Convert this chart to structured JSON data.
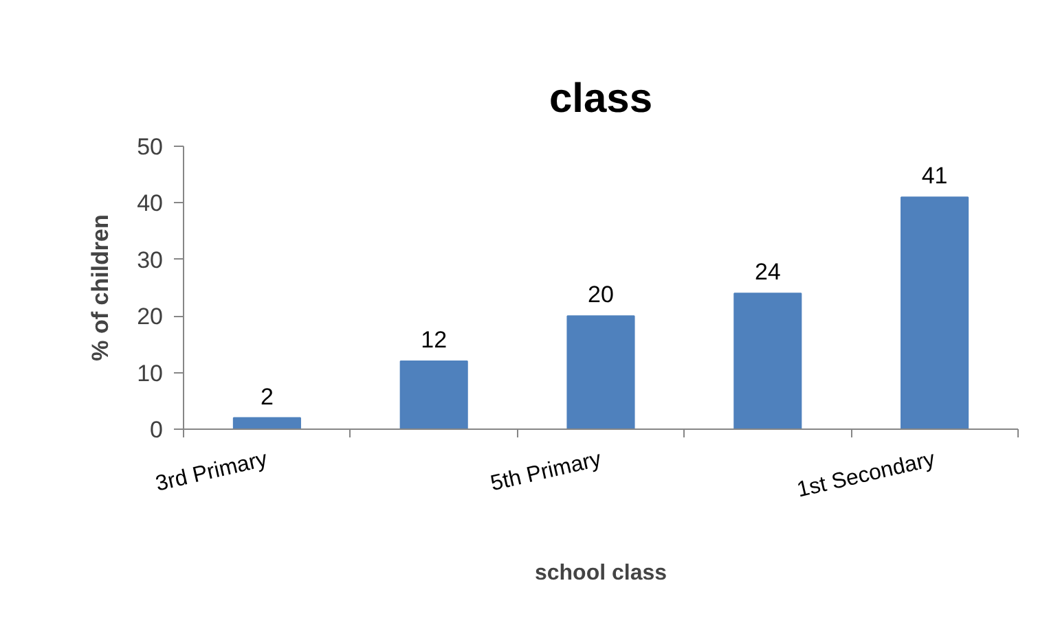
{
  "chart_data": {
    "type": "bar",
    "title": "class",
    "xlabel": "school class",
    "ylabel": "% of children",
    "categories": [
      "3rd Primary",
      null,
      "5th Primary",
      null,
      "1st Secondary"
    ],
    "values": [
      2,
      12,
      20,
      24,
      41
    ],
    "color": "#4f81bd",
    "ylim": [
      0,
      50
    ],
    "yticks": [
      0,
      10,
      20,
      30,
      40,
      50
    ],
    "data_labels": true
  }
}
